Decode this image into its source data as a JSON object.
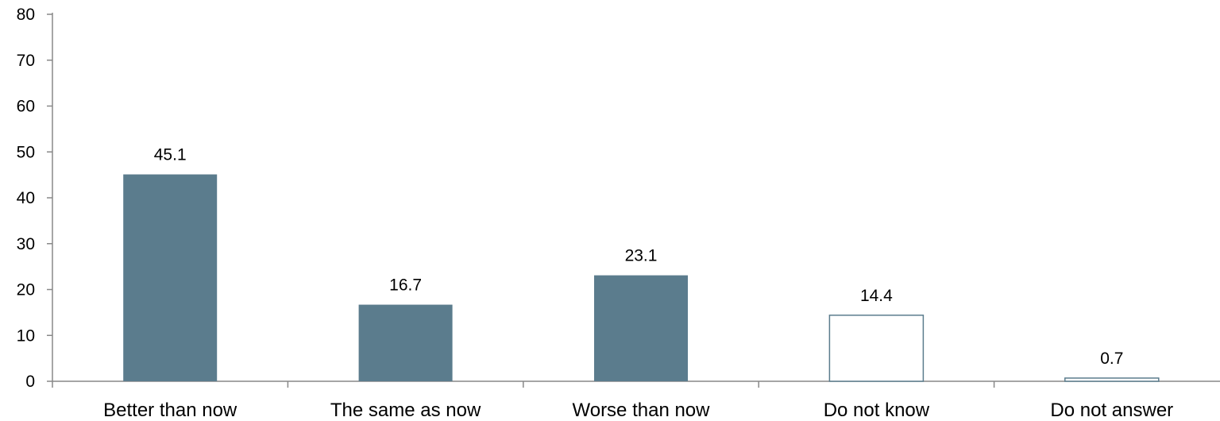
{
  "chart_data": {
    "type": "bar",
    "categories": [
      "Better than now",
      "The same as now",
      "Worse than now",
      "Do not know",
      "Do not answer"
    ],
    "values": [
      45.1,
      16.7,
      23.1,
      14.4,
      0.7
    ],
    "data_labels": [
      "45.1",
      "16.7",
      "23.1",
      "14.4",
      "0.7"
    ],
    "bar_styles": [
      "filled",
      "filled",
      "filled",
      "outline",
      "outline"
    ],
    "ylim": [
      0,
      80
    ],
    "yticks": [
      0,
      10,
      20,
      30,
      40,
      50,
      60,
      70,
      80
    ],
    "ytick_labels": [
      "0",
      "10",
      "20",
      "30",
      "40",
      "50",
      "60",
      "70",
      "80"
    ],
    "grid": false,
    "legend": false,
    "colors": {
      "bar_fill": "#5b7c8d",
      "bar_outline": "#5b7c8d",
      "axis": "#888888"
    }
  }
}
